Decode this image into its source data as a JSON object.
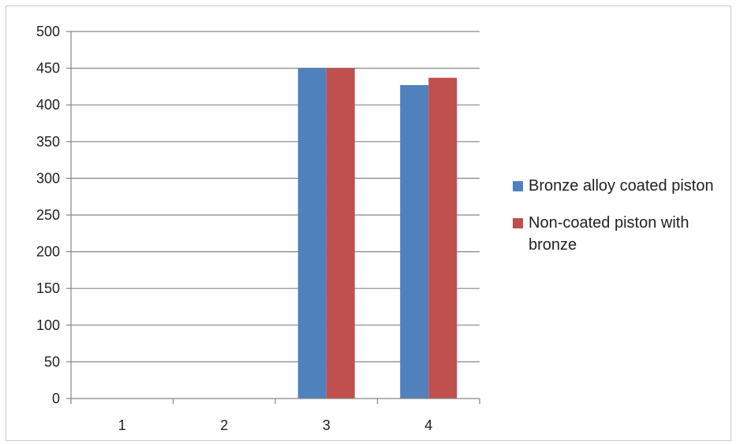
{
  "chart_data": {
    "type": "bar",
    "title": "",
    "xlabel": "",
    "ylabel": "",
    "categories": [
      "1",
      "2",
      "3",
      "4"
    ],
    "ylim": [
      0,
      500
    ],
    "yticks": [
      0,
      50,
      100,
      150,
      200,
      250,
      300,
      350,
      400,
      450,
      500
    ],
    "grid": true,
    "legend_position": "right",
    "series": [
      {
        "name": "Bronze alloy coated piston",
        "color": "#4f81bd",
        "values": [
          0,
          0,
          450,
          427
        ]
      },
      {
        "name": "Non-coated piston with bronze",
        "color": "#c0504d",
        "values": [
          0,
          0,
          450,
          437
        ]
      }
    ]
  }
}
